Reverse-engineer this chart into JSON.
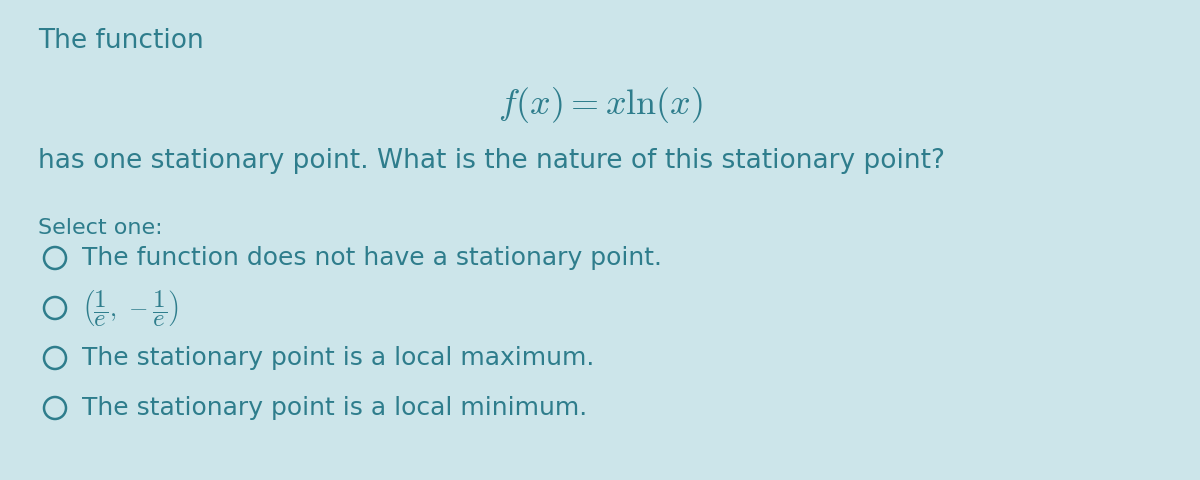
{
  "background_color": "#cce5ea",
  "text_color": "#2e7d8c",
  "title_text": "The function",
  "formula": "$f(x) = x\\ln(x)$",
  "subtitle_text": "has one stationary point. What is the nature of this stationary point?",
  "select_label": "Select one:",
  "options": [
    "The function does not have a stationary point.",
    "$\\left(\\dfrac{1}{e},\\,-\\dfrac{1}{e}\\right)$",
    "The stationary point is a local maximum.",
    "The stationary point is a local minimum."
  ],
  "title_fontsize": 19,
  "formula_fontsize": 26,
  "subtitle_fontsize": 19,
  "select_fontsize": 16,
  "option_fontsize": 18,
  "fig_width": 12.0,
  "fig_height": 4.8,
  "dpi": 100
}
